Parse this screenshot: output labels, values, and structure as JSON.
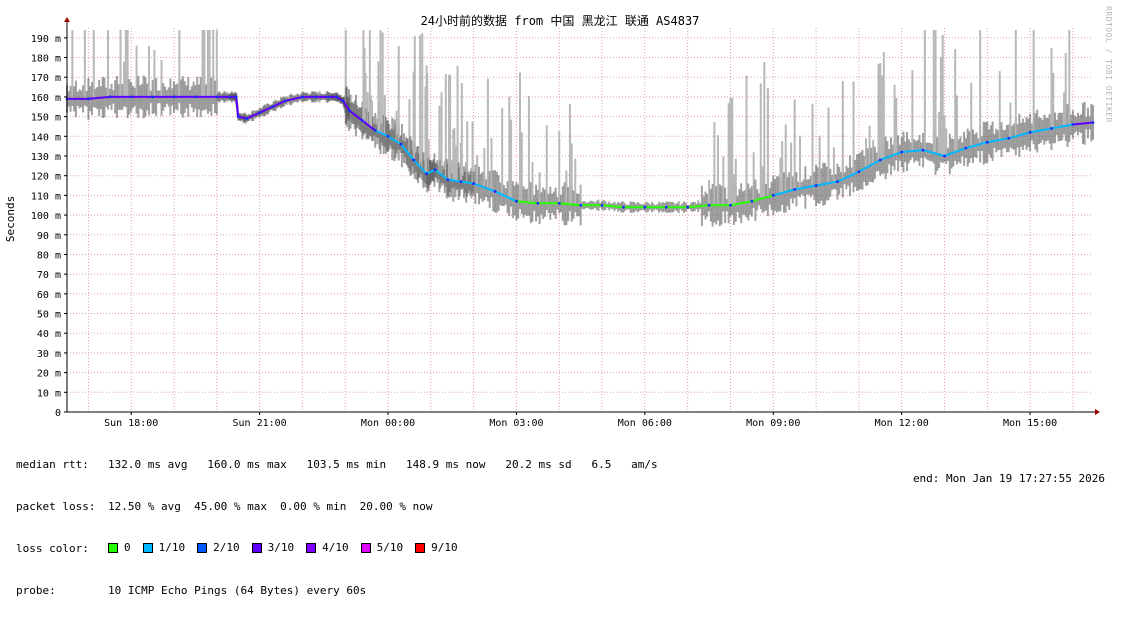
{
  "chart_data": {
    "type": "line",
    "title": "24小时前的数据 from 中国 黑龙江 联通 AS4837",
    "ylabel": "Seconds",
    "ylim": [
      0,
      195
    ],
    "yticks": [
      0,
      10,
      20,
      30,
      40,
      50,
      60,
      70,
      80,
      90,
      100,
      110,
      120,
      130,
      140,
      150,
      160,
      170,
      180,
      190
    ],
    "ytick_labels": [
      "0",
      "10 m",
      "20 m",
      "30 m",
      "40 m",
      "50 m",
      "60 m",
      "70 m",
      "80 m",
      "90 m",
      "100 m",
      "110 m",
      "120 m",
      "130 m",
      "140 m",
      "150 m",
      "160 m",
      "170 m",
      "180 m",
      "190 m"
    ],
    "xlim": [
      16.5,
      40.47
    ],
    "xticks": [
      18,
      21,
      24,
      27,
      30,
      33,
      36,
      39
    ],
    "xtick_labels": [
      "Sun 18:00",
      "Sun 21:00",
      "Mon 00:00",
      "Mon 03:00",
      "Mon 06:00",
      "Mon 09:00",
      "Mon 12:00",
      "Mon 15:00"
    ],
    "grid": true,
    "series": [
      {
        "name": "median rtt",
        "x": [
          16.5,
          17.0,
          17.5,
          18.0,
          18.5,
          19.0,
          19.5,
          20.0,
          20.3,
          20.45,
          20.5,
          20.7,
          21.0,
          21.3,
          21.6,
          22.0,
          22.3,
          22.6,
          22.8,
          22.95,
          23.1,
          23.4,
          23.7,
          24.0,
          24.3,
          24.6,
          24.9,
          25.1,
          25.4,
          25.7,
          26.0,
          26.5,
          27.0,
          27.5,
          28.0,
          28.5,
          29.0,
          29.5,
          30.0,
          30.5,
          31.0,
          31.5,
          32.0,
          32.5,
          33.0,
          33.5,
          34.0,
          34.5,
          35.0,
          35.5,
          36.0,
          36.5,
          37.0,
          37.5,
          38.0,
          38.5,
          39.0,
          39.5,
          40.0,
          40.47
        ],
        "y": [
          159,
          159,
          160,
          160,
          160,
          160,
          160,
          160,
          160,
          160,
          150,
          149,
          152,
          155,
          158,
          160,
          160,
          160,
          160,
          158,
          153,
          148,
          143,
          140,
          136,
          128,
          121,
          123,
          118,
          117,
          116,
          112,
          107,
          106,
          106,
          105,
          105,
          104,
          104,
          104,
          104,
          105,
          105,
          107,
          110,
          113,
          115,
          117,
          122,
          128,
          132,
          133,
          130,
          134,
          137,
          139,
          142,
          144,
          146,
          147
        ]
      }
    ],
    "loss_colors": [
      {
        "label": "0",
        "color": "#26ff00"
      },
      {
        "label": "1/10",
        "color": "#00b8ff"
      },
      {
        "label": "2/10",
        "color": "#0059ff"
      },
      {
        "label": "3/10",
        "color": "#5e00ff"
      },
      {
        "label": "4/10",
        "color": "#7e00ff"
      },
      {
        "label": "5/10",
        "color": "#dd00ff"
      },
      {
        "label": "9/10",
        "color": "#ff0000"
      }
    ]
  },
  "legend": {
    "median_rtt_label": "median rtt:",
    "median_rtt_values": "132.0 ms avg   160.0 ms max   103.5 ms min   148.9 ms now   20.2 ms sd   6.5   am/s",
    "packet_loss_label": "packet loss:",
    "packet_loss_values": "12.50 % avg  45.00 % max  0.00 % min  20.00 % now",
    "loss_color_label": "loss color:",
    "probe_label": "probe:",
    "probe_values": "10 ICMP Echo Pings (64 Bytes) every 60s",
    "end_text": "end: Mon Jan 19 17:27:55 2026"
  },
  "watermark": "RRDTOOL / TOBI OETIKER"
}
